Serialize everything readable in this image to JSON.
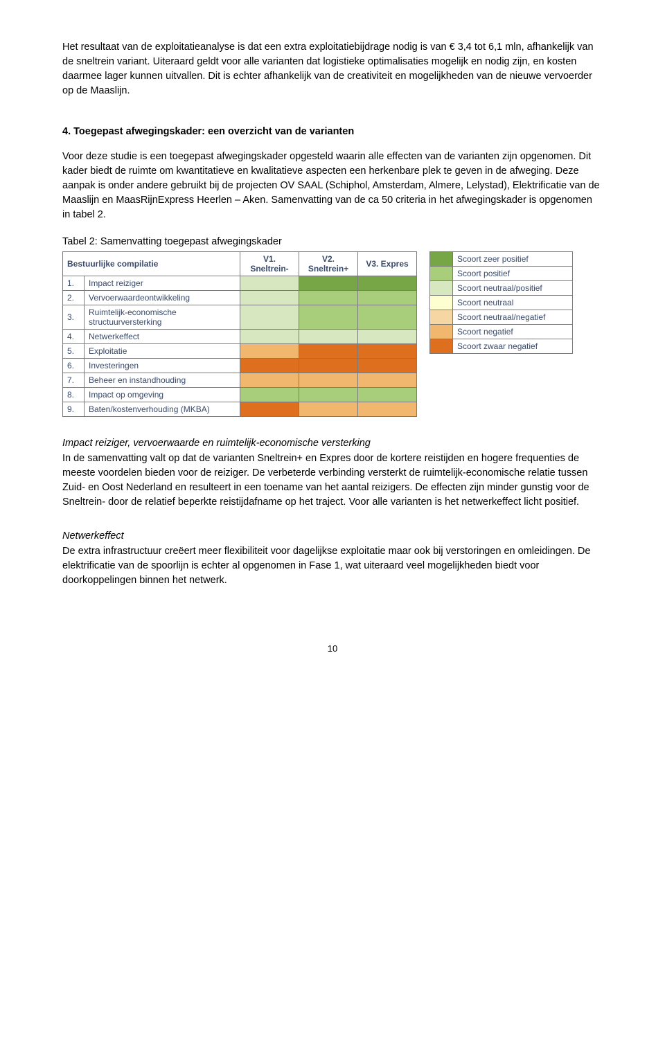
{
  "colors": {
    "text_body": "#000000",
    "text_table": "#3a4a6b",
    "border": "#7a7a7a",
    "c_zeer_positief": "#76a646",
    "c_positief": "#a8ce7c",
    "c_neutraal_positief": "#d7e8c0",
    "c_neutraal": "#feffd1",
    "c_neutraal_negatief": "#f6d6a2",
    "c_negatief": "#f2b76e",
    "c_zwaar_negatief": "#de6f1e"
  },
  "para1": "Het resultaat van de exploitatieanalyse is dat een extra exploitatiebijdrage nodig is van € 3,4 tot 6,1 mln, afhankelijk van de sneltrein variant. Uiteraard geldt voor alle varianten dat logistieke optimalisaties mogelijk en nodig zijn, en kosten daarmee lager kunnen uitvallen. Dit is echter afhankelijk van de creativiteit en mogelijkheden van de nieuwe vervoerder op de Maaslijn.",
  "heading1": "4. Toegepast afwegingskader: een overzicht van de varianten",
  "para2": "Voor deze studie is een toegepast afwegingskader opgesteld waarin alle effecten van de varianten zijn opgenomen. Dit kader biedt de ruimte om kwantitatieve en kwalitatieve aspecten een herkenbare plek te geven in de afweging. Deze aanpak is onder andere gebruikt bij de projecten OV SAAL (Schiphol, Amsterdam, Almere, Lelystad), Elektrificatie van de Maaslijn en MaasRijnExpress Heerlen – Aken. Samenvatting van de ca 50 criteria in het afwegingskader is opgenomen in tabel 2.",
  "table_caption": "Tabel 2: Samenvatting toegepast afwegingskader",
  "main_table": {
    "header_rowlabel": "Bestuurlijke compilatie",
    "col_headers": [
      "V1. Sneltrein-",
      "V2. Sneltrein+",
      "V3. Expres"
    ],
    "rows": [
      {
        "num": "1.",
        "label": "Impact reiziger",
        "cells": [
          "c_neutraal_positief",
          "c_zeer_positief",
          "c_zeer_positief"
        ]
      },
      {
        "num": "2.",
        "label": "Vervoerwaardeontwikkeling",
        "cells": [
          "c_neutraal_positief",
          "c_positief",
          "c_positief"
        ]
      },
      {
        "num": "3.",
        "label": "Ruimtelijk-economische structuurversterking",
        "cells": [
          "c_neutraal_positief",
          "c_positief",
          "c_positief"
        ]
      },
      {
        "num": "4.",
        "label": "Netwerkeffect",
        "cells": [
          "c_neutraal_positief",
          "c_neutraal_positief",
          "c_neutraal_positief"
        ]
      },
      {
        "num": "5.",
        "label": "Exploitatie",
        "cells": [
          "c_negatief",
          "c_zwaar_negatief",
          "c_zwaar_negatief"
        ]
      },
      {
        "num": "6.",
        "label": "Investeringen",
        "cells": [
          "c_zwaar_negatief",
          "c_zwaar_negatief",
          "c_zwaar_negatief"
        ]
      },
      {
        "num": "7.",
        "label": "Beheer en instandhouding",
        "cells": [
          "c_negatief",
          "c_negatief",
          "c_negatief"
        ]
      },
      {
        "num": "8.",
        "label": "Impact op omgeving",
        "cells": [
          "c_positief",
          "c_positief",
          "c_positief"
        ]
      },
      {
        "num": "9.",
        "label": "Baten/kostenverhouding (MKBA)",
        "cells": [
          "c_zwaar_negatief",
          "c_negatief",
          "c_negatief"
        ]
      }
    ]
  },
  "legend": [
    {
      "color": "c_zeer_positief",
      "label": "Scoort zeer positief"
    },
    {
      "color": "c_positief",
      "label": "Scoort positief"
    },
    {
      "color": "c_neutraal_positief",
      "label": "Scoort neutraal/positief"
    },
    {
      "color": "c_neutraal",
      "label": "Scoort neutraal"
    },
    {
      "color": "c_neutraal_negatief",
      "label": "Scoort neutraal/negatief"
    },
    {
      "color": "c_negatief",
      "label": "Scoort negatief"
    },
    {
      "color": "c_zwaar_negatief",
      "label": "Scoort zwaar negatief"
    }
  ],
  "sub1_heading": "Impact reiziger, vervoerwaarde en ruimtelijk-economische versterking",
  "sub1_para": "In de samenvatting valt op dat de varianten Sneltrein+ en Expres door de kortere reistijden en hogere frequenties de meeste voordelen bieden voor de reiziger. De verbeterde verbinding versterkt de ruimtelijk-economische relatie tussen Zuid- en Oost Nederland en resulteert in een toename van het aantal reizigers. De effecten zijn minder gunstig voor de Sneltrein- door de relatief beperkte reistijdafname op het traject. Voor alle varianten is het netwerkeffect licht positief.",
  "sub2_heading": "Netwerkeffect",
  "sub2_para": "De extra infrastructuur creëert meer flexibiliteit voor dagelijkse exploitatie maar ook bij verstoringen en omleidingen. De elektrificatie van de spoorlijn is echter al opgenomen in Fase 1, wat uiteraard veel mogelijkheden biedt voor doorkoppelingen binnen het netwerk.",
  "page_number": "10"
}
